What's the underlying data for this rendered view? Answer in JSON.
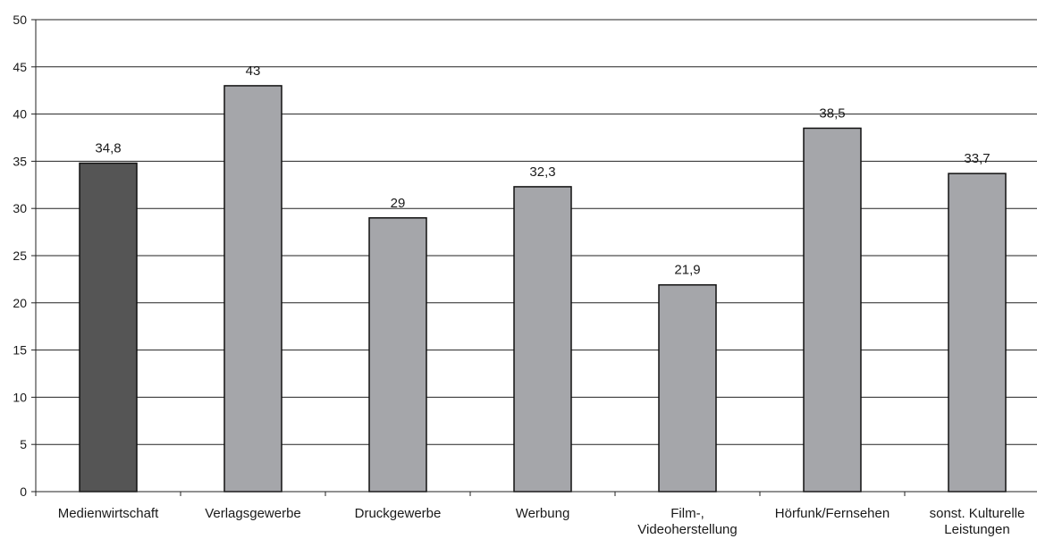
{
  "chart_data": {
    "type": "bar",
    "title": "",
    "xlabel": "",
    "ylabel": "",
    "ylim": [
      0,
      50
    ],
    "yticks": [
      0,
      5,
      10,
      15,
      20,
      25,
      30,
      35,
      40,
      45,
      50
    ],
    "grid": true,
    "categories": [
      [
        "Medienwirtschaft"
      ],
      [
        "Verlagsgewerbe"
      ],
      [
        "Druckgewerbe"
      ],
      [
        "Werbung"
      ],
      [
        "Film-,",
        "Videoherstellung"
      ],
      [
        "Hörfunk/Fernsehen"
      ],
      [
        "sonst. Kulturelle",
        "Leistungen"
      ]
    ],
    "values": [
      34.8,
      43,
      29,
      32.3,
      21.9,
      38.5,
      33.7
    ],
    "value_labels": [
      "34,8",
      "43",
      "29",
      "32,3",
      "21,9",
      "38,5",
      "33,7"
    ],
    "colors": {
      "highlight": "#555555",
      "bar": "#a5a6aa",
      "outline": "#111111",
      "grid": "#222222"
    },
    "highlight_index": 0
  }
}
